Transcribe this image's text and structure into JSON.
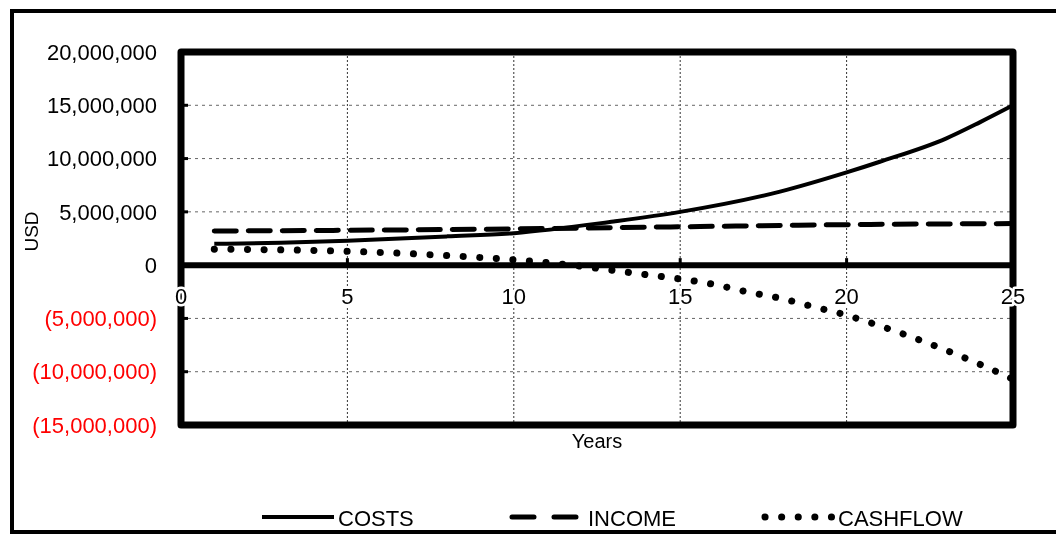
{
  "chart_data": {
    "type": "line",
    "xlabel": "Years",
    "ylabel": "USD",
    "xlim": [
      0,
      25
    ],
    "xticks": [
      0,
      5,
      10,
      15,
      20,
      25
    ],
    "ylim": [
      -15000000,
      20000000
    ],
    "yticks": [
      {
        "value": -15000000,
        "label": "(15,000,000)"
      },
      {
        "value": -10000000,
        "label": "(10,000,000)"
      },
      {
        "value": -5000000,
        "label": "(5,000,000)"
      },
      0,
      {
        "value": 5000000,
        "label": "5,000,000"
      },
      {
        "value": 10000000,
        "label": "10,000,000"
      },
      {
        "value": 15000000,
        "label": "15,000,000"
      },
      {
        "value": 20000000,
        "label": "20,000,000"
      }
    ],
    "grid": true,
    "legend": "bottom",
    "series": [
      {
        "name": "COSTS",
        "color": "#000000",
        "line_style": "solid",
        "x": [
          1,
          3,
          5,
          8,
          10,
          13,
          15,
          18,
          20,
          21,
          23,
          24,
          25
        ],
        "values": [
          2000000,
          2100000,
          2300000,
          2700000,
          3000000,
          4100000,
          5000000,
          6900000,
          8700000,
          9700000,
          11900000,
          13400000,
          15000000
        ]
      },
      {
        "name": "INCOME",
        "color": "#000000",
        "line_style": "dashed",
        "x": [
          1,
          10,
          15,
          20,
          25
        ],
        "values": [
          3200000,
          3400000,
          3600000,
          3800000,
          3900000
        ]
      },
      {
        "name": "CASHFLOW",
        "color": "#000000",
        "line_style": "dotted",
        "x": [
          1,
          5,
          8,
          10,
          12,
          13,
          14,
          15,
          16,
          17,
          18,
          19,
          20,
          21,
          22,
          23,
          24,
          25
        ],
        "values": [
          1500000,
          1300000,
          900000,
          500000,
          -100000,
          -500000,
          -900000,
          -1300000,
          -1800000,
          -2500000,
          -3100000,
          -3900000,
          -4700000,
          -5700000,
          -6800000,
          -8000000,
          -9300000,
          -10700000
        ]
      }
    ]
  }
}
